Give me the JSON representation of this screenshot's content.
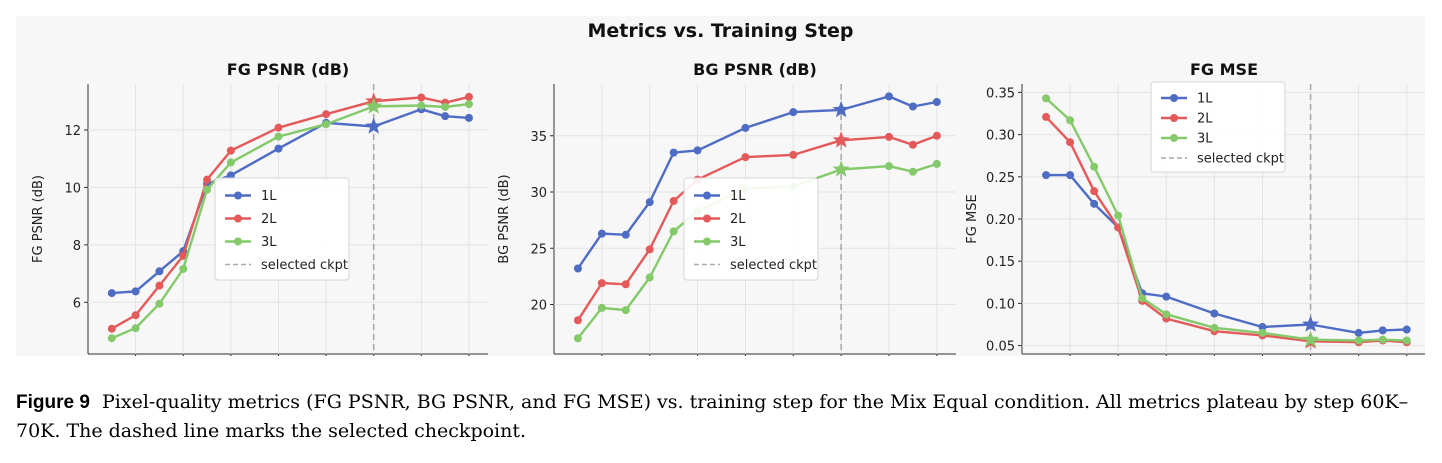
{
  "figure": {
    "suptitle": "Metrics vs. Training Step",
    "caption_label": "Figure 9",
    "caption_text": "Pixel-quality metrics (FG PSNR, BG PSNR, and FG MSE) vs. training step for the Mix Equal condition. All metrics plateau by step 60K–70K. The dashed line marks the selected checkpoint."
  },
  "colors": {
    "1L": "#4f6cc4",
    "2L": "#e45a5a",
    "3L": "#84c96a",
    "ckpt": "#aaaaaa"
  },
  "chart_data": [
    {
      "type": "line",
      "title": "FG PSNR (dB)",
      "ylabel": "FG PSNR (dB)",
      "xlim": [
        0,
        84000
      ],
      "ylim": [
        4.2,
        13.6
      ],
      "x_ticks": [
        10000,
        20000,
        30000,
        40000,
        50000,
        60000,
        70000,
        80000
      ],
      "y_ticks": [
        6,
        8,
        10,
        12
      ],
      "y_tick_labels": [
        "6",
        "8",
        "10",
        "12"
      ],
      "x": [
        5000,
        10000,
        15000,
        20000,
        25000,
        30000,
        40000,
        50000,
        60000,
        70000,
        75000,
        80000
      ],
      "series": [
        {
          "name": "1L",
          "values": [
            6.32,
            6.38,
            7.08,
            7.78,
            10.12,
            10.42,
            11.35,
            12.25,
            12.12,
            12.72,
            12.48,
            12.42
          ]
        },
        {
          "name": "2L",
          "values": [
            5.08,
            5.55,
            6.58,
            7.62,
            10.27,
            11.28,
            12.08,
            12.55,
            13.0,
            13.13,
            12.95,
            13.15
          ]
        },
        {
          "name": "3L",
          "values": [
            4.75,
            5.1,
            5.95,
            7.16,
            9.92,
            10.87,
            11.77,
            12.2,
            12.82,
            12.85,
            12.8,
            12.9
          ]
        }
      ],
      "selected_ckpt": 60000,
      "legend_label": "selected ckpt",
      "legend_position": "lower-right"
    },
    {
      "type": "line",
      "title": "BG PSNR (dB)",
      "ylabel": "BG PSNR (dB)",
      "xlim": [
        0,
        84000
      ],
      "ylim": [
        15.6,
        39.6
      ],
      "x_ticks": [
        10000,
        20000,
        30000,
        40000,
        50000,
        60000,
        70000,
        80000
      ],
      "y_ticks": [
        20,
        25,
        30,
        35
      ],
      "y_tick_labels": [
        "20",
        "25",
        "30",
        "35"
      ],
      "x": [
        5000,
        10000,
        15000,
        20000,
        25000,
        30000,
        40000,
        50000,
        60000,
        70000,
        75000,
        80000
      ],
      "series": [
        {
          "name": "1L",
          "values": [
            23.2,
            26.3,
            26.2,
            29.1,
            33.5,
            33.7,
            35.7,
            37.1,
            37.3,
            38.5,
            37.6,
            38.0
          ]
        },
        {
          "name": "2L",
          "values": [
            18.6,
            21.9,
            21.8,
            24.9,
            29.2,
            31.1,
            33.1,
            33.3,
            34.6,
            34.9,
            34.2,
            35.0
          ]
        },
        {
          "name": "3L",
          "values": [
            17.0,
            19.7,
            19.5,
            22.4,
            26.5,
            28.3,
            30.3,
            30.5,
            32.0,
            32.3,
            31.8,
            32.5
          ]
        }
      ],
      "selected_ckpt": 60000,
      "legend_label": "selected ckpt",
      "legend_position": "lower-right"
    },
    {
      "type": "line",
      "title": "FG MSE",
      "ylabel": "FG MSE",
      "xlim": [
        0,
        84000
      ],
      "ylim": [
        0.04,
        0.36
      ],
      "x_ticks": [
        10000,
        20000,
        30000,
        40000,
        50000,
        60000,
        70000,
        80000
      ],
      "y_ticks": [
        0.05,
        0.1,
        0.15,
        0.2,
        0.25,
        0.3,
        0.35
      ],
      "y_tick_labels": [
        "0.05",
        "0.10",
        "0.15",
        "0.20",
        "0.25",
        "0.30",
        "0.35"
      ],
      "x": [
        5000,
        10000,
        15000,
        20000,
        25000,
        30000,
        40000,
        50000,
        60000,
        70000,
        75000,
        80000
      ],
      "series": [
        {
          "name": "1L",
          "values": [
            0.252,
            0.252,
            0.218,
            0.19,
            0.112,
            0.108,
            0.088,
            0.072,
            0.075,
            0.065,
            0.068,
            0.069
          ]
        },
        {
          "name": "2L",
          "values": [
            0.321,
            0.291,
            0.233,
            0.19,
            0.103,
            0.082,
            0.067,
            0.062,
            0.055,
            0.054,
            0.056,
            0.054
          ]
        },
        {
          "name": "3L",
          "values": [
            0.343,
            0.317,
            0.262,
            0.204,
            0.106,
            0.087,
            0.071,
            0.065,
            0.057,
            0.056,
            0.057,
            0.056
          ]
        }
      ],
      "selected_ckpt": 60000,
      "legend_label": "selected ckpt",
      "legend_position": "upper-center"
    }
  ]
}
